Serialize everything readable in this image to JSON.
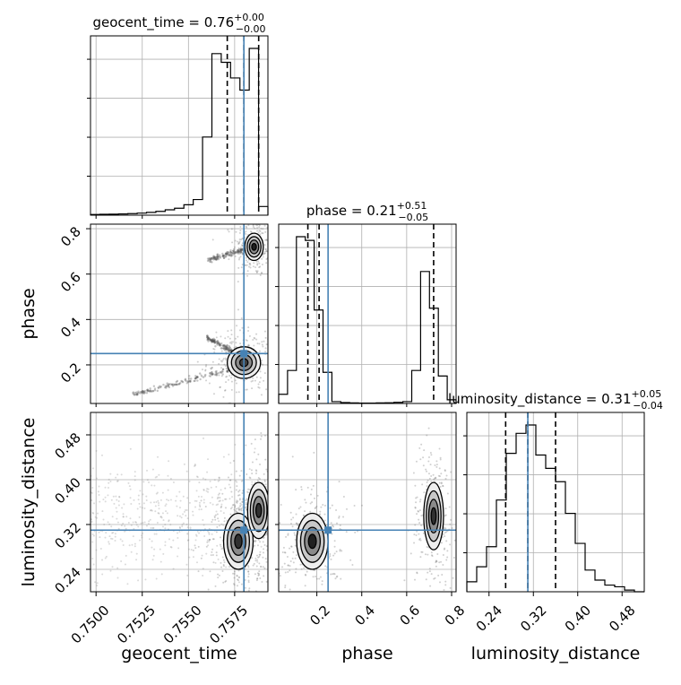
{
  "chart_data": {
    "type": "corner",
    "parameters": [
      "geocent_time",
      "phase",
      "luminosity_distance"
    ],
    "truths": {
      "geocent_time": 0.758,
      "phase": 0.25,
      "luminosity_distance": 0.31
    },
    "ranges": {
      "geocent_time": [
        0.7497,
        0.7593
      ],
      "phase": [
        0.03,
        0.82
      ],
      "luminosity_distance": [
        0.2,
        0.52
      ]
    },
    "ticks": {
      "geocent_time": [
        "0.7500",
        "0.7525",
        "0.7550",
        "0.7575"
      ],
      "phase": [
        "0.2",
        "0.4",
        "0.6",
        "0.8"
      ],
      "luminosity_distance": [
        "0.24",
        "0.32",
        "0.40",
        "0.48"
      ]
    },
    "marginals": [
      {
        "param": "geocent_time",
        "title_prefix": "geocent_time = 0.76",
        "title_sup": "+0.00",
        "title_sub": "−0.00",
        "quantiles": [
          0.7571,
          0.758,
          0.7588
        ],
        "bins_start": 0.7497,
        "bins_end": 0.7593,
        "counts": [
          0.004,
          0.005,
          0.006,
          0.007,
          0.009,
          0.012,
          0.016,
          0.022,
          0.031,
          0.04,
          0.06,
          0.09,
          0.45,
          0.93,
          0.88,
          0.79,
          0.72,
          0.96,
          0.05
        ]
      },
      {
        "param": "phase",
        "title_prefix": "phase = 0.21",
        "title_sup": "+0.51",
        "title_sub": "−0.05",
        "quantiles": [
          0.16,
          0.21,
          0.72
        ],
        "bins_start": 0.03,
        "bins_end": 0.82,
        "counts": [
          0.05,
          0.18,
          0.91,
          0.89,
          0.51,
          0.17,
          0.01,
          0.005,
          0.003,
          0.002,
          0.002,
          0.003,
          0.004,
          0.006,
          0.01,
          0.18,
          0.72,
          0.52,
          0.15,
          0.02
        ]
      },
      {
        "param": "luminosity_distance",
        "title_prefix": "luminosity_distance = 0.31",
        "title_sup": "+0.05",
        "title_sub": "−0.04",
        "quantiles": [
          0.27,
          0.31,
          0.36
        ],
        "bins_start": 0.2,
        "bins_end": 0.52,
        "counts": [
          0.06,
          0.15,
          0.27,
          0.55,
          0.83,
          0.95,
          1.0,
          0.82,
          0.74,
          0.66,
          0.47,
          0.29,
          0.13,
          0.07,
          0.04,
          0.03,
          0.01,
          0.0
        ]
      }
    ],
    "pairs": [
      {
        "x": "geocent_time",
        "y": "phase",
        "blobs": [
          {
            "cx": 0.75855,
            "cy": 0.72,
            "sx": 0.00025,
            "sy": 0.03,
            "color": "#202020"
          },
          {
            "cx": 0.758,
            "cy": 0.21,
            "sx": 0.00045,
            "sy": 0.035,
            "color": "#404040"
          }
        ],
        "trails": [
          {
            "x0": 0.752,
            "y0": 0.07,
            "x1": 0.7578,
            "y1": 0.19
          },
          {
            "x0": 0.756,
            "y0": 0.32,
            "x1": 0.7578,
            "y1": 0.24
          },
          {
            "x0": 0.756,
            "y0": 0.66,
            "x1": 0.7585,
            "y1": 0.72
          }
        ]
      },
      {
        "x": "geocent_time",
        "y": "luminosity_distance",
        "blobs": [
          {
            "cx": 0.7577,
            "cy": 0.29,
            "sx": 0.0004,
            "sy": 0.025,
            "color": "#303030"
          },
          {
            "cx": 0.7588,
            "cy": 0.345,
            "sx": 0.0003,
            "sy": 0.025,
            "color": "#303030"
          }
        ],
        "trails": []
      },
      {
        "x": "phase",
        "y": "luminosity_distance",
        "blobs": [
          {
            "cx": 0.18,
            "cy": 0.29,
            "sx": 0.035,
            "sy": 0.025,
            "color": "#202020"
          },
          {
            "cx": 0.72,
            "cy": 0.335,
            "sx": 0.022,
            "sy": 0.03,
            "color": "#303030"
          }
        ],
        "trails": []
      }
    ]
  }
}
